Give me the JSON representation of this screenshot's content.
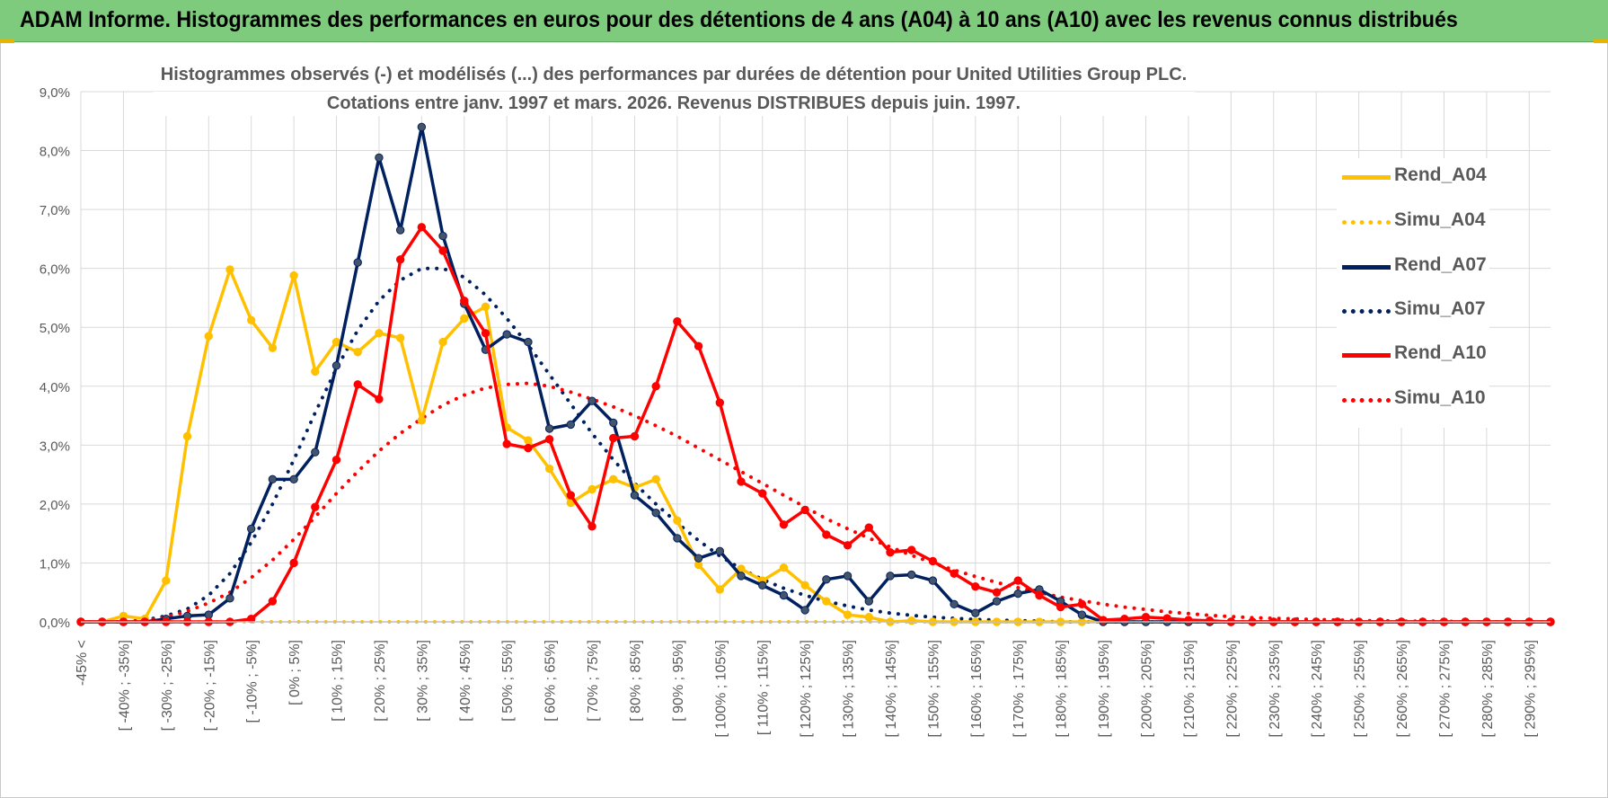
{
  "header": {
    "title": "ADAM Informe. Histogrammes des performances en euros pour des détentions de 4 ans (A04) à 10 ans (A10) avec les revenus connus distribués"
  },
  "colors": {
    "banner": "#7ecb7e",
    "a04": "#ffc000",
    "a07": "#002060",
    "a10": "#ff0000",
    "grid": "#d9d9d9",
    "text": "#595959"
  },
  "chart_data": {
    "type": "line",
    "title": "Histogrammes observés (-) et modélisés (...) des performances par durées de détention pour United Utilities Group PLC.",
    "subtitle": "Cotations entre janv. 1997 et mars. 2026. Revenus DISTRIBUES depuis juin. 1997.",
    "ylim": [
      0,
      9
    ],
    "yticks": [
      0,
      1,
      2,
      3,
      4,
      5,
      6,
      7,
      8,
      9
    ],
    "ytick_labels": [
      "0,0%",
      "1,0%",
      "2,0%",
      "3,0%",
      "4,0%",
      "5,0%",
      "6,0%",
      "7,0%",
      "8,0%",
      "9,0%"
    ],
    "x_labels": [
      "-45% <",
      "[ -40% ; -35%]",
      "[ -30% ; -25%]",
      "[ -20% ; -15%]",
      "[ -10% ; -5%]",
      "[ 0% ; 5%]",
      "[ 10% ; 15%]",
      "[ 20% ; 25%]",
      "[ 30% ; 35%]",
      "[ 40% ; 45%]",
      "[ 50% ; 55%]",
      "[ 60% ; 65%]",
      "[ 70% ; 75%]",
      "[ 80% ; 85%]",
      "[ 90% ; 95%]",
      "[ 100% ; 105%]",
      "[ 110% ; 115%]",
      "[ 120% ; 125%]",
      "[ 130% ; 135%]",
      "[ 140% ; 145%]",
      "[ 150% ; 155%]",
      "[ 160% ; 165%]",
      "[ 170% ; 175%]",
      "[ 180% ; 185%]",
      "[ 190% ; 195%]",
      "[ 200% ; 205%]",
      "[ 210% ; 215%]",
      "[ 220% ; 225%]",
      "[ 230% ; 235%]",
      "[ 240% ; 245%]",
      "[ 250% ; 255%]",
      "[ 260% ; 265%]",
      "[ 270% ; 275%]",
      "[ 280% ; 285%]",
      "[ 290% ; 295%]"
    ],
    "n_bins": 70,
    "series": [
      {
        "name": "Rend_A04",
        "key": "a04",
        "dotted": false,
        "markers": true,
        "values": [
          0,
          0,
          0.1,
          0.05,
          0.7,
          3.15,
          4.85,
          5.98,
          5.12,
          4.65,
          5.88,
          4.25,
          4.75,
          4.58,
          4.9,
          4.82,
          3.42,
          4.75,
          5.15,
          5.35,
          3.3,
          3.08,
          2.6,
          2.02,
          2.25,
          2.42,
          2.28,
          2.42,
          1.72,
          0.97,
          0.55,
          0.9,
          0.7,
          0.92,
          0.62,
          0.35,
          0.12,
          0.08,
          0,
          0.02,
          0,
          0,
          0,
          0,
          0,
          0,
          0,
          0,
          0,
          0,
          0,
          0,
          0,
          0,
          0,
          0,
          0,
          0,
          0,
          0,
          0,
          0,
          0,
          0,
          0,
          0,
          0,
          0,
          0,
          0
        ]
      },
      {
        "name": "Simu_A04",
        "key": "a04",
        "dotted": true,
        "markers": false,
        "values": [
          0,
          0,
          0,
          0,
          0,
          0,
          0,
          0,
          0,
          0,
          0,
          0,
          0,
          0,
          0,
          0,
          0,
          0,
          0,
          0,
          0,
          0,
          0,
          0,
          0,
          0,
          0,
          0,
          0,
          0,
          0,
          0,
          0,
          0,
          0,
          0,
          0,
          0,
          0,
          0,
          0,
          0,
          0,
          0,
          0,
          0,
          0,
          0,
          0,
          0,
          0,
          0,
          0,
          0,
          0,
          0,
          0,
          0,
          0,
          0,
          0,
          0,
          0,
          0,
          0,
          0,
          0,
          0,
          0,
          0
        ]
      },
      {
        "name": "Rend_A07",
        "key": "a07",
        "dotted": false,
        "markers": true,
        "values": [
          0,
          0,
          0,
          0,
          0.05,
          0.1,
          0.12,
          0.4,
          1.58,
          2.42,
          2.42,
          2.88,
          4.35,
          6.1,
          7.88,
          6.65,
          8.4,
          6.55,
          5.4,
          4.62,
          4.88,
          4.75,
          3.28,
          3.35,
          3.75,
          3.38,
          2.15,
          1.85,
          1.42,
          1.08,
          1.2,
          0.78,
          0.62,
          0.45,
          0.2,
          0.72,
          0.78,
          0.35,
          0.78,
          0.8,
          0.7,
          0.3,
          0.15,
          0.35,
          0.48,
          0.55,
          0.35,
          0.12,
          0,
          0,
          0,
          0,
          0,
          0,
          0,
          0,
          0,
          0,
          0,
          0,
          0,
          0,
          0,
          0,
          0,
          0,
          0,
          0,
          0,
          0
        ]
      },
      {
        "name": "Simu_A07",
        "key": "a07",
        "dotted": true,
        "markers": false,
        "values": [
          0,
          0,
          0,
          0.03,
          0.1,
          0.22,
          0.45,
          0.82,
          1.35,
          2.0,
          2.75,
          3.55,
          4.3,
          4.95,
          5.45,
          5.8,
          6.0,
          6.0,
          5.85,
          5.55,
          5.15,
          4.7,
          4.2,
          3.7,
          3.2,
          2.75,
          2.35,
          2.0,
          1.68,
          1.38,
          1.12,
          0.9,
          0.72,
          0.57,
          0.45,
          0.35,
          0.27,
          0.2,
          0.15,
          0.11,
          0.08,
          0.06,
          0.04,
          0.03,
          0.02,
          0.01,
          0,
          0,
          0,
          0,
          0,
          0,
          0,
          0,
          0,
          0,
          0,
          0,
          0,
          0,
          0,
          0,
          0,
          0,
          0,
          0,
          0,
          0,
          0,
          0
        ]
      },
      {
        "name": "Rend_A10",
        "key": "a10",
        "dotted": false,
        "markers": true,
        "values": [
          0,
          0,
          0,
          0,
          0,
          0,
          0,
          0,
          0.05,
          0.35,
          1.0,
          1.95,
          2.75,
          4.03,
          3.78,
          6.15,
          6.7,
          6.3,
          5.45,
          4.9,
          3.02,
          2.95,
          3.1,
          2.15,
          1.62,
          3.12,
          3.15,
          4.0,
          5.1,
          4.68,
          3.72,
          2.38,
          2.18,
          1.65,
          1.9,
          1.48,
          1.3,
          1.6,
          1.18,
          1.22,
          1.03,
          0.82,
          0.6,
          0.5,
          0.7,
          0.45,
          0.25,
          0.3,
          0.03,
          0.05,
          0.08,
          0.06,
          0.03,
          0.02,
          0,
          0,
          0,
          0,
          0,
          0,
          0,
          0,
          0,
          0,
          0,
          0,
          0,
          0,
          0,
          0
        ]
      },
      {
        "name": "Simu_A10",
        "key": "a10",
        "dotted": true,
        "markers": false,
        "values": [
          0,
          0,
          0,
          0.02,
          0.08,
          0.18,
          0.32,
          0.5,
          0.75,
          1.05,
          1.4,
          1.78,
          2.18,
          2.55,
          2.9,
          3.2,
          3.45,
          3.68,
          3.85,
          3.97,
          4.03,
          4.05,
          4.0,
          3.9,
          3.78,
          3.65,
          3.5,
          3.33,
          3.15,
          2.95,
          2.75,
          2.55,
          2.35,
          2.15,
          1.95,
          1.75,
          1.58,
          1.42,
          1.27,
          1.13,
          1.0,
          0.88,
          0.77,
          0.67,
          0.58,
          0.5,
          0.42,
          0.36,
          0.3,
          0.25,
          0.21,
          0.17,
          0.14,
          0.11,
          0.09,
          0.07,
          0.06,
          0.05,
          0.04,
          0.03,
          0.02,
          0.02,
          0.01,
          0.01,
          0.01,
          0,
          0,
          0,
          0,
          0
        ]
      }
    ],
    "legend": [
      "Rend_A04",
      "Simu_A04",
      "Rend_A07",
      "Simu_A07",
      "Rend_A10",
      "Simu_A10"
    ],
    "legend_position": "right",
    "grid": true
  }
}
